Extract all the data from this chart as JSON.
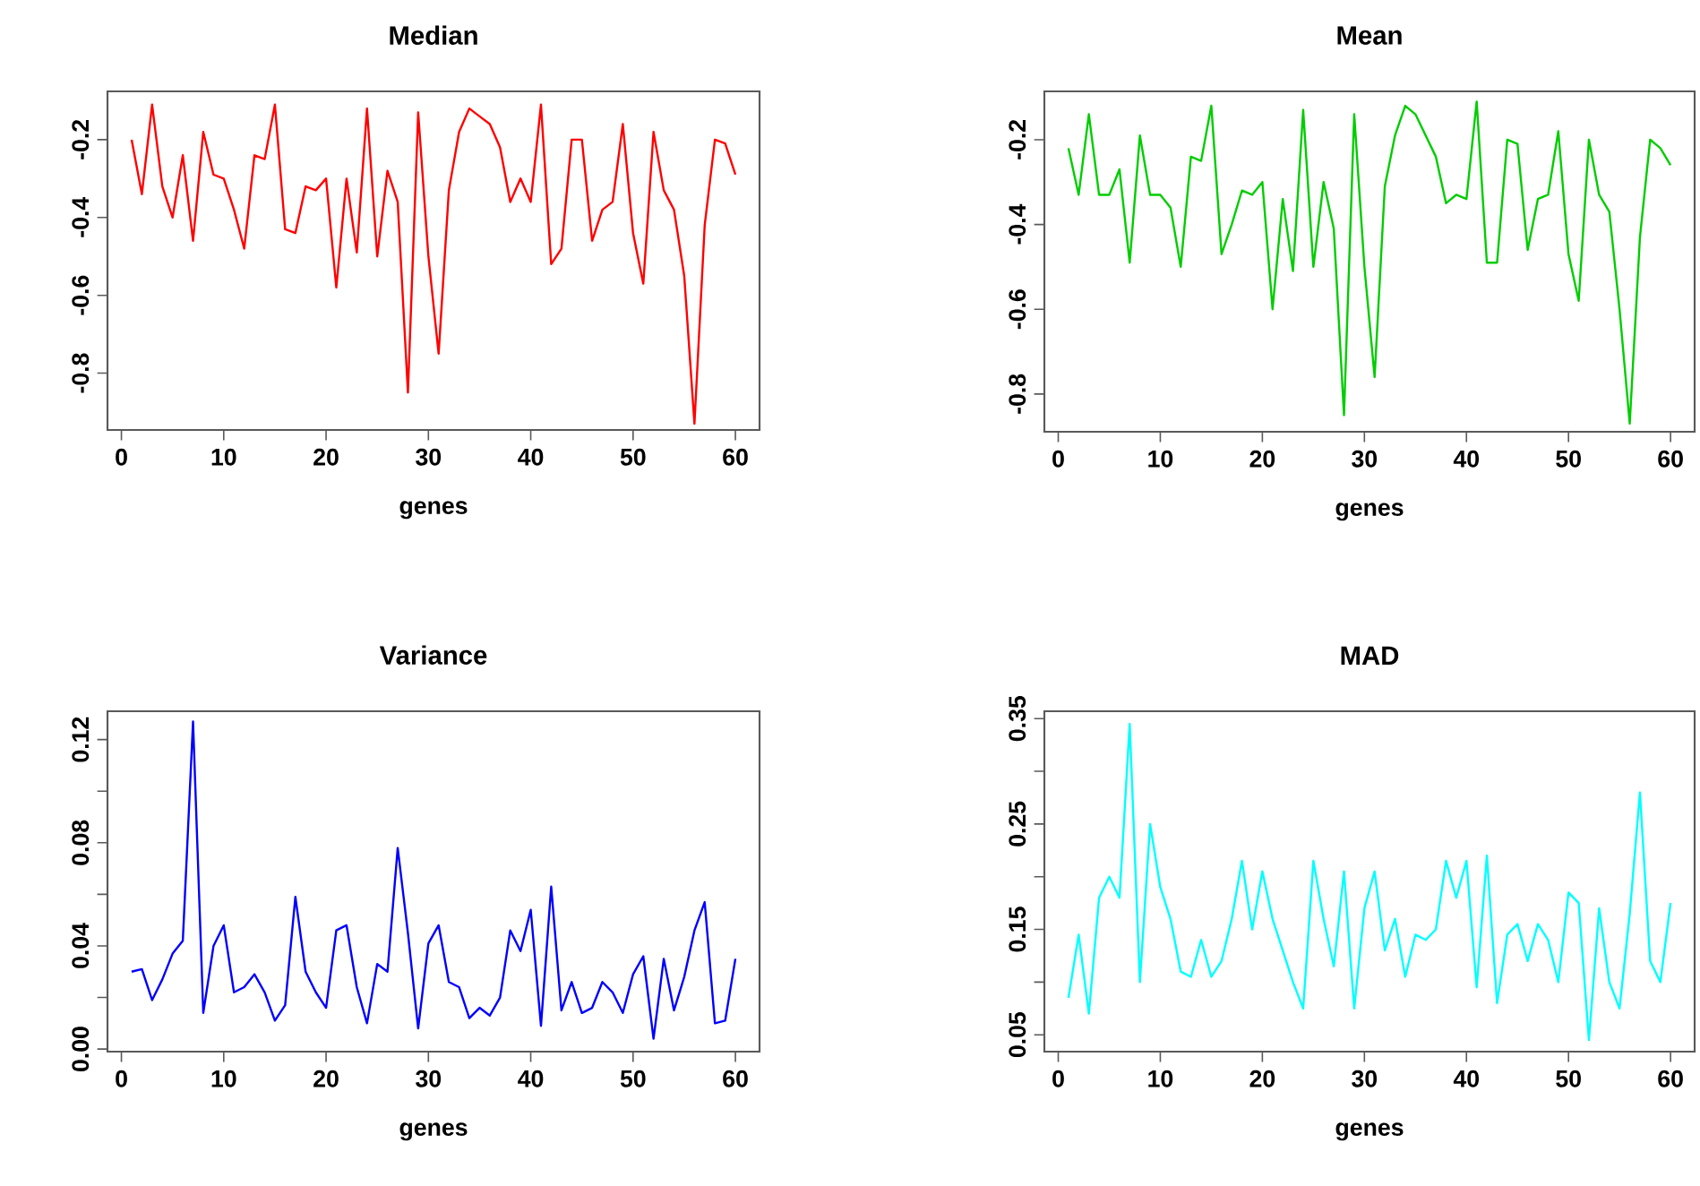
{
  "chart_data": [
    {
      "type": "line",
      "title": "Median",
      "xlabel": "genes",
      "color": "#ff0000",
      "xlim": [
        -1.36,
        62.36
      ],
      "ylim": [
        -0.946,
        -0.076
      ],
      "xticks": [
        0,
        10,
        20,
        30,
        40,
        50,
        60
      ],
      "yticks": [
        -0.8,
        -0.6,
        -0.4,
        -0.2
      ],
      "x": [
        1,
        2,
        3,
        4,
        5,
        6,
        7,
        8,
        9,
        10,
        11,
        12,
        13,
        14,
        15,
        16,
        17,
        18,
        19,
        20,
        21,
        22,
        23,
        24,
        25,
        26,
        27,
        28,
        29,
        30,
        31,
        32,
        33,
        34,
        35,
        36,
        37,
        38,
        39,
        40,
        41,
        42,
        43,
        44,
        45,
        46,
        47,
        48,
        49,
        50,
        51,
        52,
        53,
        54,
        55,
        56,
        57,
        58,
        59,
        60
      ],
      "values": [
        -0.2,
        -0.34,
        -0.11,
        -0.32,
        -0.4,
        -0.24,
        -0.46,
        -0.18,
        -0.29,
        -0.3,
        -0.38,
        -0.48,
        -0.24,
        -0.25,
        -0.11,
        -0.43,
        -0.44,
        -0.32,
        -0.33,
        -0.3,
        -0.58,
        -0.3,
        -0.49,
        -0.12,
        -0.5,
        -0.28,
        -0.36,
        -0.85,
        -0.13,
        -0.5,
        -0.75,
        -0.33,
        -0.18,
        -0.12,
        -0.14,
        -0.16,
        -0.22,
        -0.36,
        -0.3,
        -0.36,
        -0.11,
        -0.52,
        -0.48,
        -0.2,
        -0.2,
        -0.46,
        -0.38,
        -0.36,
        -0.16,
        -0.44,
        -0.57,
        -0.18,
        -0.33,
        -0.38,
        -0.55,
        -0.93,
        -0.42,
        -0.2,
        -0.21,
        -0.29
      ]
    },
    {
      "type": "line",
      "title": "Mean",
      "xlabel": "genes",
      "color": "#00cd00",
      "xlim": [
        -1.36,
        62.36
      ],
      "ylim": [
        -0.889,
        -0.086
      ],
      "xticks": [
        0,
        10,
        20,
        30,
        40,
        50,
        60
      ],
      "yticks": [
        -0.8,
        -0.6,
        -0.4,
        -0.2
      ],
      "x": [
        1,
        2,
        3,
        4,
        5,
        6,
        7,
        8,
        9,
        10,
        11,
        12,
        13,
        14,
        15,
        16,
        17,
        18,
        19,
        20,
        21,
        22,
        23,
        24,
        25,
        26,
        27,
        28,
        29,
        30,
        31,
        32,
        33,
        34,
        35,
        36,
        37,
        38,
        39,
        40,
        41,
        42,
        43,
        44,
        45,
        46,
        47,
        48,
        49,
        50,
        51,
        52,
        53,
        54,
        55,
        56,
        57,
        58,
        59,
        60
      ],
      "values": [
        -0.22,
        -0.33,
        -0.14,
        -0.33,
        -0.33,
        -0.27,
        -0.49,
        -0.19,
        -0.33,
        -0.33,
        -0.36,
        -0.5,
        -0.24,
        -0.25,
        -0.12,
        -0.47,
        -0.4,
        -0.32,
        -0.33,
        -0.3,
        -0.6,
        -0.34,
        -0.51,
        -0.13,
        -0.5,
        -0.3,
        -0.41,
        -0.85,
        -0.14,
        -0.5,
        -0.76,
        -0.31,
        -0.19,
        -0.12,
        -0.14,
        -0.19,
        -0.24,
        -0.35,
        -0.33,
        -0.34,
        -0.11,
        -0.49,
        -0.49,
        -0.2,
        -0.21,
        -0.46,
        -0.34,
        -0.33,
        -0.18,
        -0.47,
        -0.58,
        -0.2,
        -0.33,
        -0.37,
        -0.6,
        -0.87,
        -0.43,
        -0.2,
        -0.22,
        -0.26
      ]
    },
    {
      "type": "line",
      "title": "Variance",
      "xlabel": "genes",
      "color": "#0000ff",
      "xlim": [
        -1.36,
        62.36
      ],
      "ylim": [
        -0.001,
        0.131
      ],
      "xticks": [
        0,
        10,
        20,
        30,
        40,
        50,
        60
      ],
      "yticks": [
        {
          "value": 0,
          "label": "0.00"
        },
        {
          "value": 0.02,
          "label": null
        },
        {
          "value": 0.04,
          "label": "0.04"
        },
        {
          "value": 0.06,
          "label": null
        },
        {
          "value": 0.08,
          "label": "0.08"
        },
        {
          "value": 0.1,
          "label": null
        },
        {
          "value": 0.12,
          "label": "0.12"
        }
      ],
      "x": [
        1,
        2,
        3,
        4,
        5,
        6,
        7,
        8,
        9,
        10,
        11,
        12,
        13,
        14,
        15,
        16,
        17,
        18,
        19,
        20,
        21,
        22,
        23,
        24,
        25,
        26,
        27,
        28,
        29,
        30,
        31,
        32,
        33,
        34,
        35,
        36,
        37,
        38,
        39,
        40,
        41,
        42,
        43,
        44,
        45,
        46,
        47,
        48,
        49,
        50,
        51,
        52,
        53,
        54,
        55,
        56,
        57,
        58,
        59,
        60
      ],
      "values": [
        0.03,
        0.031,
        0.019,
        0.027,
        0.037,
        0.042,
        0.127,
        0.014,
        0.04,
        0.048,
        0.022,
        0.024,
        0.029,
        0.022,
        0.011,
        0.017,
        0.059,
        0.03,
        0.022,
        0.016,
        0.046,
        0.048,
        0.024,
        0.01,
        0.033,
        0.03,
        0.078,
        0.045,
        0.008,
        0.041,
        0.048,
        0.026,
        0.024,
        0.012,
        0.016,
        0.013,
        0.02,
        0.046,
        0.038,
        0.054,
        0.009,
        0.063,
        0.015,
        0.026,
        0.014,
        0.016,
        0.026,
        0.022,
        0.014,
        0.029,
        0.036,
        0.004,
        0.035,
        0.015,
        0.028,
        0.046,
        0.057,
        0.01,
        0.011,
        0.035
      ]
    },
    {
      "type": "line",
      "title": "MAD",
      "xlabel": "genes",
      "color": "#00ffff",
      "xlim": [
        -1.36,
        62.36
      ],
      "ylim": [
        0.034,
        0.357
      ],
      "xticks": [
        0,
        10,
        20,
        30,
        40,
        50,
        60
      ],
      "yticks": [
        {
          "value": 0.05,
          "label": "0.05"
        },
        {
          "value": 0.1,
          "label": null
        },
        {
          "value": 0.15,
          "label": "0.15"
        },
        {
          "value": 0.2,
          "label": null
        },
        {
          "value": 0.25,
          "label": "0.25"
        },
        {
          "value": 0.3,
          "label": null
        },
        {
          "value": 0.35,
          "label": "0.35"
        }
      ],
      "x": [
        1,
        2,
        3,
        4,
        5,
        6,
        7,
        8,
        9,
        10,
        11,
        12,
        13,
        14,
        15,
        16,
        17,
        18,
        19,
        20,
        21,
        22,
        23,
        24,
        25,
        26,
        27,
        28,
        29,
        30,
        31,
        32,
        33,
        34,
        35,
        36,
        37,
        38,
        39,
        40,
        41,
        42,
        43,
        44,
        45,
        46,
        47,
        48,
        49,
        50,
        51,
        52,
        53,
        54,
        55,
        56,
        57,
        58,
        59,
        60
      ],
      "values": [
        0.085,
        0.145,
        0.07,
        0.18,
        0.2,
        0.18,
        0.345,
        0.1,
        0.25,
        0.19,
        0.16,
        0.11,
        0.105,
        0.14,
        0.105,
        0.12,
        0.16,
        0.215,
        0.15,
        0.205,
        0.16,
        0.13,
        0.1,
        0.075,
        0.215,
        0.16,
        0.115,
        0.205,
        0.075,
        0.17,
        0.205,
        0.13,
        0.16,
        0.105,
        0.145,
        0.14,
        0.15,
        0.215,
        0.18,
        0.215,
        0.095,
        0.22,
        0.08,
        0.145,
        0.155,
        0.12,
        0.155,
        0.14,
        0.1,
        0.185,
        0.175,
        0.045,
        0.17,
        0.1,
        0.075,
        0.165,
        0.28,
        0.12,
        0.1,
        0.175
      ]
    }
  ]
}
